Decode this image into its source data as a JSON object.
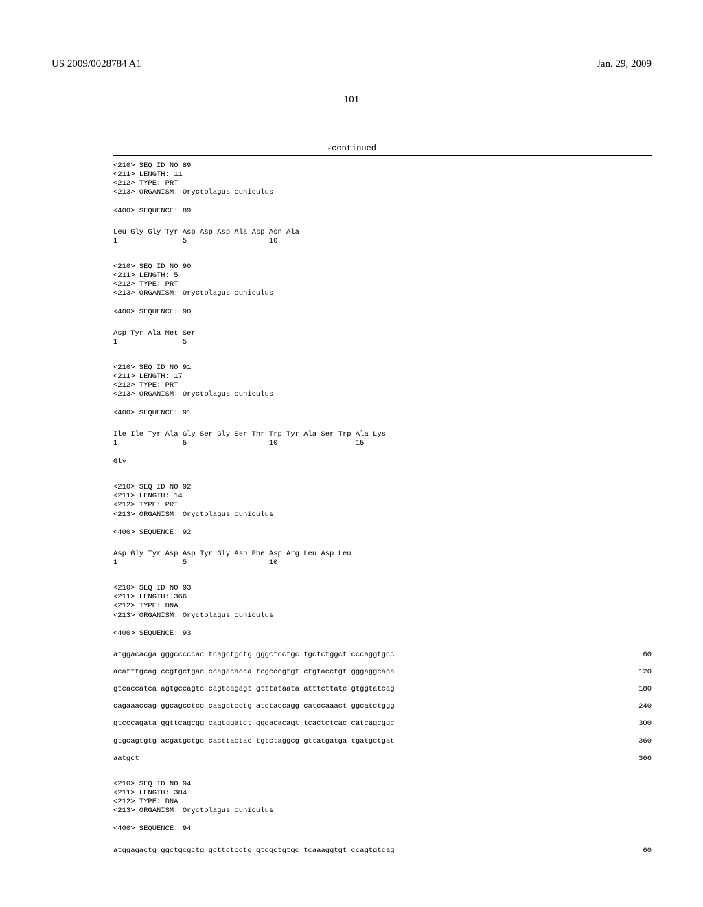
{
  "header": {
    "pub_number": "US 2009/0028784 A1",
    "date": "Jan. 29, 2009"
  },
  "page_number": "101",
  "continued_label": "-continued",
  "sequences": [
    {
      "id": "89",
      "length": "11",
      "type": "PRT",
      "organism": "Oryctolagus cuniculus",
      "seq_label": "89",
      "protein_lines": [
        {
          "aa": "Leu Gly Gly Tyr Asp Asp Asp Ala Asp Asn Ala",
          "nums": "1               5                   10"
        }
      ]
    },
    {
      "id": "90",
      "length": "5",
      "type": "PRT",
      "organism": "Oryctolagus cuniculus",
      "seq_label": "90",
      "protein_lines": [
        {
          "aa": "Asp Tyr Ala Met Ser",
          "nums": "1               5"
        }
      ]
    },
    {
      "id": "91",
      "length": "17",
      "type": "PRT",
      "organism": "Oryctolagus cuniculus",
      "seq_label": "91",
      "protein_lines": [
        {
          "aa": "Ile Ile Tyr Ala Gly Ser Gly Ser Thr Trp Tyr Ala Ser Trp Ala Lys",
          "nums": "1               5                   10                  15"
        },
        {
          "aa": "Gly",
          "nums": ""
        }
      ]
    },
    {
      "id": "92",
      "length": "14",
      "type": "PRT",
      "organism": "Oryctolagus cuniculus",
      "seq_label": "92",
      "protein_lines": [
        {
          "aa": "Asp Gly Tyr Asp Asp Tyr Gly Asp Phe Asp Arg Leu Asp Leu",
          "nums": "1               5                   10"
        }
      ]
    },
    {
      "id": "93",
      "length": "366",
      "type": "DNA",
      "organism": "Oryctolagus cuniculus",
      "seq_label": "93",
      "dna_lines": [
        {
          "seq": "atggacacga gggcccccac tcagctgctg gggctcctgc tgctctggct cccaggtgcc",
          "num": "60"
        },
        {
          "seq": "acatttgcag ccgtgctgac ccagacacca tcgcccgtgt ctgtacctgt gggaggcaca",
          "num": "120"
        },
        {
          "seq": "gtcaccatca agtgccagtc cagtcagagt gtttataata atttcttatc gtggtatcag",
          "num": "180"
        },
        {
          "seq": "cagaaaccag ggcagcctcc caagctcctg atctaccagg catccaaact ggcatctggg",
          "num": "240"
        },
        {
          "seq": "gtcccagata ggttcagcgg cagtggatct gggacacagt tcactctcac catcagcggc",
          "num": "300"
        },
        {
          "seq": "gtgcagtgtg acgatgctgc cacttactac tgtctaggcg gttatgatga tgatgctgat",
          "num": "360"
        },
        {
          "seq": "aatgct",
          "num": "366"
        }
      ]
    },
    {
      "id": "94",
      "length": "384",
      "type": "DNA",
      "organism": "Oryctolagus cuniculus",
      "seq_label": "94",
      "dna_lines": [
        {
          "seq": "atggagactg ggctgcgctg gcttctcctg gtcgctgtgc tcaaaggtgt ccagtgtcag",
          "num": "60"
        }
      ]
    }
  ],
  "labels": {
    "seq_id": "<210> SEQ ID NO ",
    "length": "<211> LENGTH: ",
    "type": "<212> TYPE: ",
    "organism": "<213> ORGANISM: ",
    "sequence": "<400> SEQUENCE: "
  }
}
